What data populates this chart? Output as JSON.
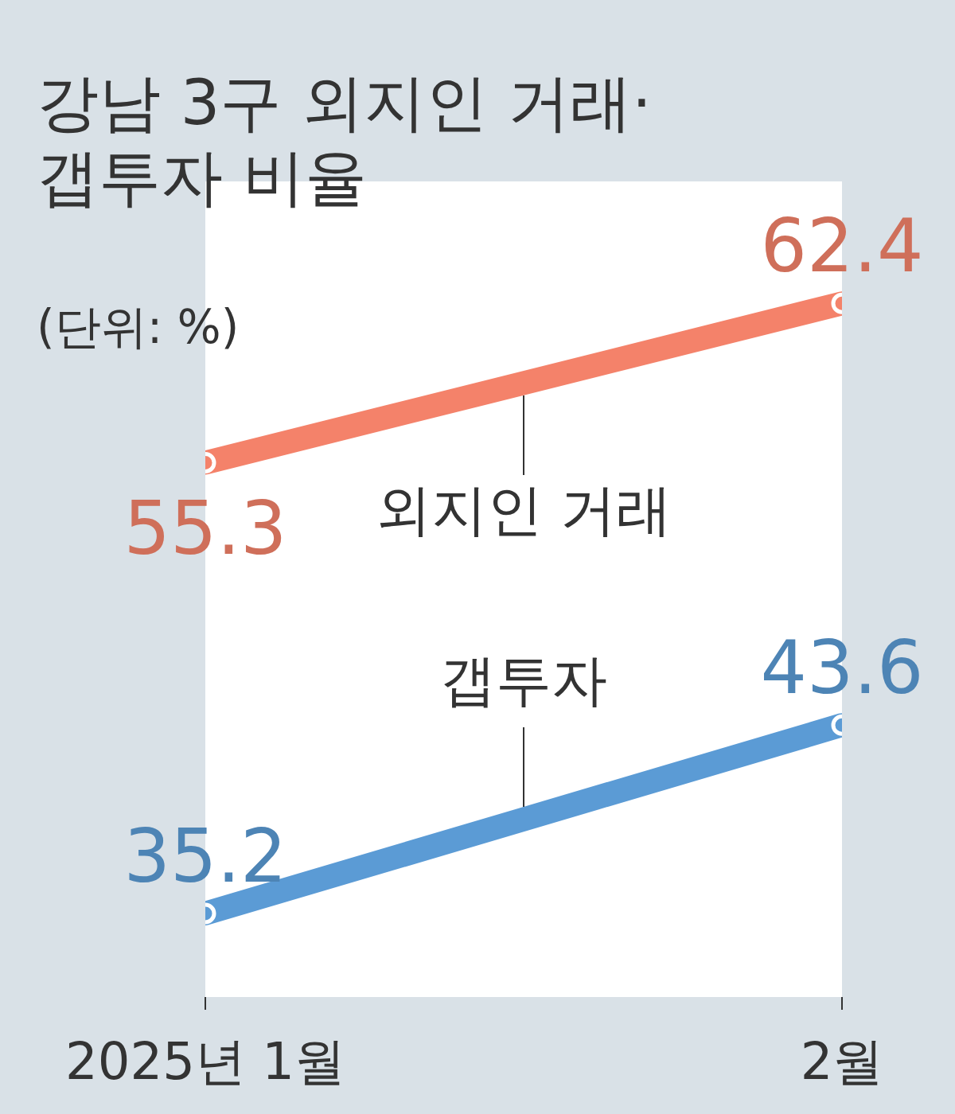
{
  "chart_data": {
    "type": "line",
    "title": "강남 3구 외지인 거래·\n갭투자 비율",
    "subtitle": "(단위: %)",
    "categories": [
      "2025년 1월",
      "2월"
    ],
    "series": [
      {
        "name": "외지인 거래",
        "color": "#f4826a",
        "values": [
          55.3,
          62.4
        ]
      },
      {
        "name": "갭투자",
        "color": "#5b9bd5",
        "values": [
          35.2,
          43.6
        ]
      }
    ],
    "data_labels": true,
    "marker": "circle",
    "legend": false,
    "grid": false
  }
}
